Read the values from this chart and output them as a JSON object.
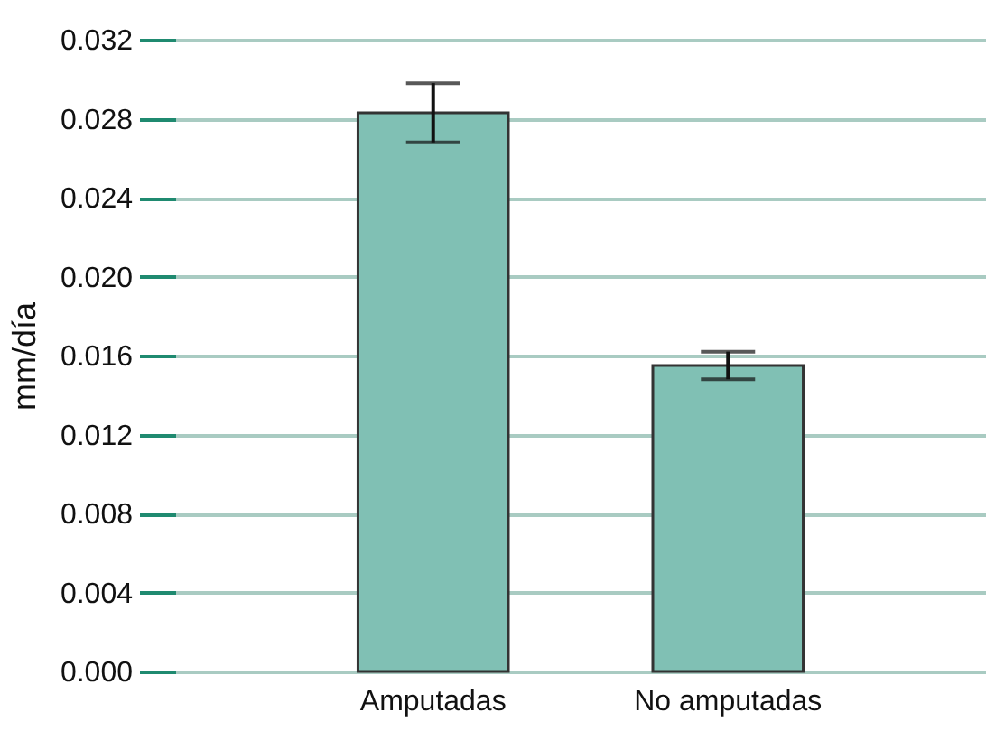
{
  "chart_data": {
    "type": "bar",
    "ylabel": "mm/día",
    "categories": [
      "Amputadas",
      "No amputadas"
    ],
    "values": [
      0.0283,
      0.0155
    ],
    "errors": [
      0.0015,
      0.0007
    ],
    "color": "#80c0b4",
    "ylim": [
      0,
      0.032
    ],
    "yticks": [
      {
        "value": 0,
        "label": "0.000"
      },
      {
        "value": 0.004,
        "label": "0.004"
      },
      {
        "value": 0.008,
        "label": "0.008"
      },
      {
        "value": 0.012,
        "label": "0.012"
      },
      {
        "value": 0.016,
        "label": "0.016"
      },
      {
        "value": 0.02,
        "label": "0.020"
      },
      {
        "value": 0.024,
        "label": "0.024"
      },
      {
        "value": 0.028,
        "label": "0.028"
      },
      {
        "value": 0.032,
        "label": "0.032"
      }
    ],
    "grid": "y"
  }
}
